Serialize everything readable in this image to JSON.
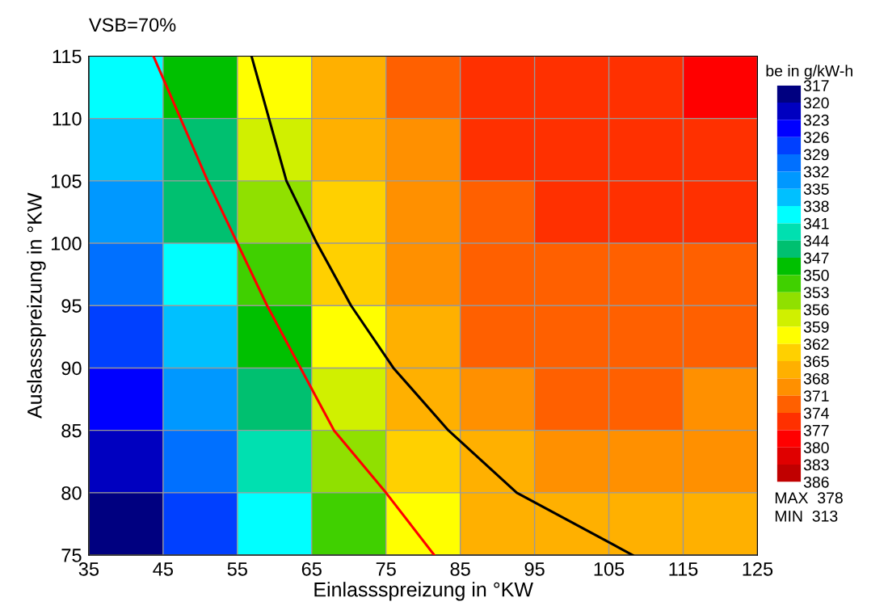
{
  "chart_data": [
    {
      "type": "heatmap",
      "clabel": "be in g/kW-h",
      "categories": [
        null,
        null,
        null,
        null,
        null,
        null,
        null,
        null,
        null
      ],
      "y_categories": [
        null,
        null,
        null,
        null,
        null,
        null,
        null,
        null
      ],
      "cells": [
        [
          340,
          349,
          359,
          367,
          371,
          375,
          376,
          376,
          377
        ],
        [
          337,
          346,
          357,
          366,
          370,
          374,
          375,
          375,
          375
        ],
        [
          334,
          344,
          355,
          364,
          369,
          373,
          374,
          374,
          374
        ],
        [
          331,
          340,
          352,
          362,
          368,
          372,
          373,
          373,
          373
        ],
        [
          328,
          337,
          349,
          360,
          367,
          371,
          372,
          372,
          372
        ],
        [
          324,
          334,
          346,
          357,
          365,
          369,
          371,
          371,
          370
        ],
        [
          322,
          331,
          343,
          354,
          363,
          367,
          369,
          369,
          368
        ],
        [
          319,
          328,
          340,
          352,
          361,
          366,
          367,
          367,
          366
        ]
      ],
      "colors": [
        "#000080",
        "#0000c0",
        "#0000ff",
        "#0040ff",
        "#0070ff",
        "#0098ff",
        "#00c0ff",
        "#00ffff",
        "#00e0b0",
        "#00c070",
        "#00c000",
        "#40d000",
        "#90e000",
        "#d0f000",
        "#ffff00",
        "#ffd000",
        "#ffb000",
        "#ff9000",
        "#ff6000",
        "#ff3000",
        "#ff0000",
        "#e00000",
        "#c00000"
      ],
      "clim": [
        386,
        317
      ],
      "cticks": [
        317,
        320,
        323,
        326,
        329,
        332,
        335,
        338,
        341,
        344,
        347,
        350,
        353,
        356,
        359,
        362,
        365,
        368,
        371,
        374,
        377,
        380,
        383,
        386
      ],
      "annotations": [
        "MAX  378",
        "MIN  313"
      ]
    },
    {
      "type": "line",
      "title": "VSB=70%",
      "xlabel": "Einlassspreizung in °KW",
      "ylabel": "Auslassspreizung in °KW",
      "xlim": [
        35,
        125
      ],
      "xticks": [
        35,
        45,
        55,
        65,
        75,
        85,
        95,
        105,
        115,
        125
      ],
      "ylim": [
        75,
        115
      ],
      "yticks": [
        75,
        80,
        85,
        90,
        95,
        100,
        105,
        110,
        115
      ],
      "grid": true,
      "series": [
        {
          "color": "#ff0000",
          "x": [
            43.7,
            51,
            59,
            68,
            75,
            81.5
          ],
          "values": [
            115,
            105,
            95,
            85,
            80,
            75
          ]
        },
        {
          "color": "#000000",
          "x": [
            56.9,
            61.6,
            65.7,
            70.3,
            76,
            83.4,
            92.6,
            108.2
          ],
          "values": [
            115,
            105,
            100,
            95,
            90,
            85,
            80,
            75
          ]
        }
      ]
    }
  ]
}
